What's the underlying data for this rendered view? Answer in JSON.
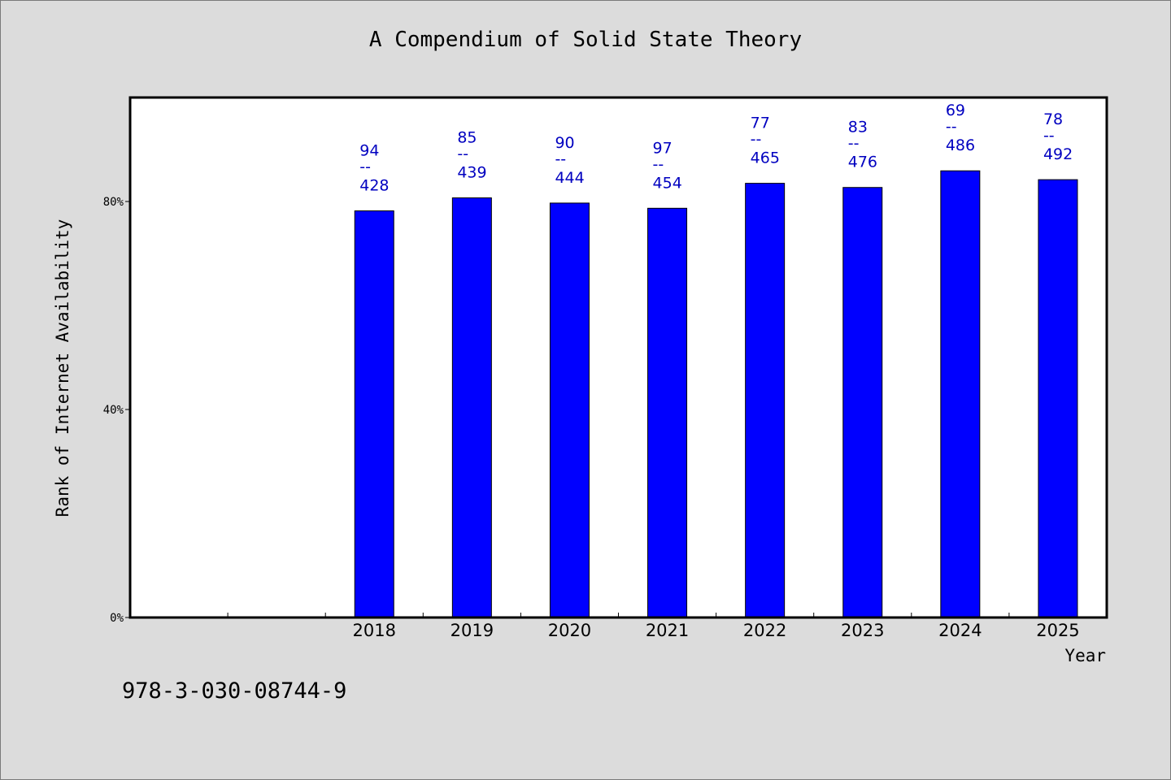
{
  "chart_data": {
    "type": "bar",
    "title": "A Compendium of Solid State Theory",
    "xlabel": "Year",
    "ylabel": "Rank of Internet Availability",
    "categories": [
      "",
      "",
      "2018",
      "2019",
      "2020",
      "2021",
      "2022",
      "2023",
      "2024",
      "2025"
    ],
    "values": [
      null,
      null,
      78.2,
      80.7,
      79.7,
      78.7,
      83.5,
      82.7,
      85.9,
      84.2
    ],
    "data_labels": [
      null,
      null,
      {
        "top": "94",
        "sep": "--",
        "bottom": "428"
      },
      {
        "top": "85",
        "sep": "--",
        "bottom": "439"
      },
      {
        "top": "90",
        "sep": "--",
        "bottom": "444"
      },
      {
        "top": "97",
        "sep": "--",
        "bottom": "454"
      },
      {
        "top": "77",
        "sep": "--",
        "bottom": "465"
      },
      {
        "top": "83",
        "sep": "--",
        "bottom": "476"
      },
      {
        "top": "69",
        "sep": "--",
        "bottom": "486"
      },
      {
        "top": "78",
        "sep": "--",
        "bottom": "492"
      }
    ],
    "yticks": [
      0,
      40,
      80
    ],
    "ytick_labels": [
      "0%",
      "40%",
      "80%"
    ],
    "ylim": [
      0,
      100
    ],
    "grid": false,
    "colors": {
      "bar": "#0000ff",
      "label": "#0000c0",
      "plot_bg": "#ffffff",
      "page_bg": "#dcdcdc"
    }
  },
  "footer": {
    "isbn": "978-3-030-08744-9"
  }
}
